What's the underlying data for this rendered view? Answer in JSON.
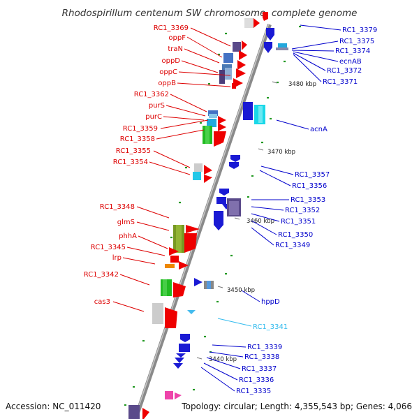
{
  "title": "Rhodospirillum centenum SW chromosome, complete genome",
  "footer": {
    "accession": "Accession: NC_011420",
    "stats": "Topology: circular; Length: 4,355,543 bp; Genes: 4,066"
  },
  "colors": {
    "forward_label": "#dd0000",
    "reverse_label": "#0000cc",
    "highlight_label": "#33bbee"
  },
  "kbp_markers": [
    "3480 kbp",
    "3470 kbp",
    "3460 kbp",
    "3450 kbp",
    "3440 kbp"
  ],
  "left_labels": [
    "RC1_3369",
    "oppF",
    "traN",
    "oppD",
    "oppC",
    "oppB",
    "RC1_3362",
    "purS",
    "purC",
    "RC1_3359",
    "RC1_3358",
    "RC1_3355",
    "RC1_3354",
    "RC1_3348",
    "glmS",
    "phhA",
    "RC1_3345",
    "lrp",
    "RC1_3342",
    "cas3"
  ],
  "right_labels": [
    "RC1_3379",
    "RC1_3375",
    "RC1_3374",
    "ecnAB",
    "RC1_3372",
    "RC1_3371",
    "acnA",
    "RC1_3357",
    "RC1_3356",
    "RC1_3353",
    "RC1_3352",
    "RC1_3351",
    "RC1_3350",
    "RC1_3349",
    "hppD",
    "RC1_3341",
    "RC1_3339",
    "RC1_3338",
    "RC1_3337",
    "RC1_3336",
    "RC1_3335"
  ]
}
